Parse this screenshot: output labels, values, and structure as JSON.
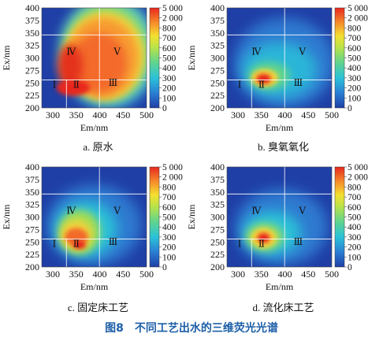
{
  "figure": {
    "title": "图8　不同工艺出水的三维荧光光谱",
    "panels": [
      {
        "id": "a",
        "caption": "a. 原水"
      },
      {
        "id": "b",
        "caption": "b. 臭氧氧化"
      },
      {
        "id": "c",
        "caption": "c. 固定床工艺"
      },
      {
        "id": "d",
        "caption": "d. 流化床工艺"
      }
    ],
    "axes": {
      "x_label": "Em/nm",
      "y_label": "Ex/nm",
      "x_ticks": [
        "300",
        "350",
        "400",
        "450",
        "500"
      ],
      "y_ticks": [
        "400",
        "375",
        "350",
        "325",
        "300",
        "275",
        "250",
        "225",
        "200"
      ]
    },
    "colorbar_ticks": [
      "5 000",
      "2 000",
      "800",
      "700",
      "600",
      "500",
      "400",
      "300",
      "200",
      "100",
      "0"
    ],
    "region_labels": [
      "Ⅰ",
      "Ⅱ",
      "Ⅲ",
      "Ⅳ",
      "Ⅴ"
    ]
  },
  "colors": {
    "background": "#1f3fa6",
    "title": "#1d5fa8"
  }
}
